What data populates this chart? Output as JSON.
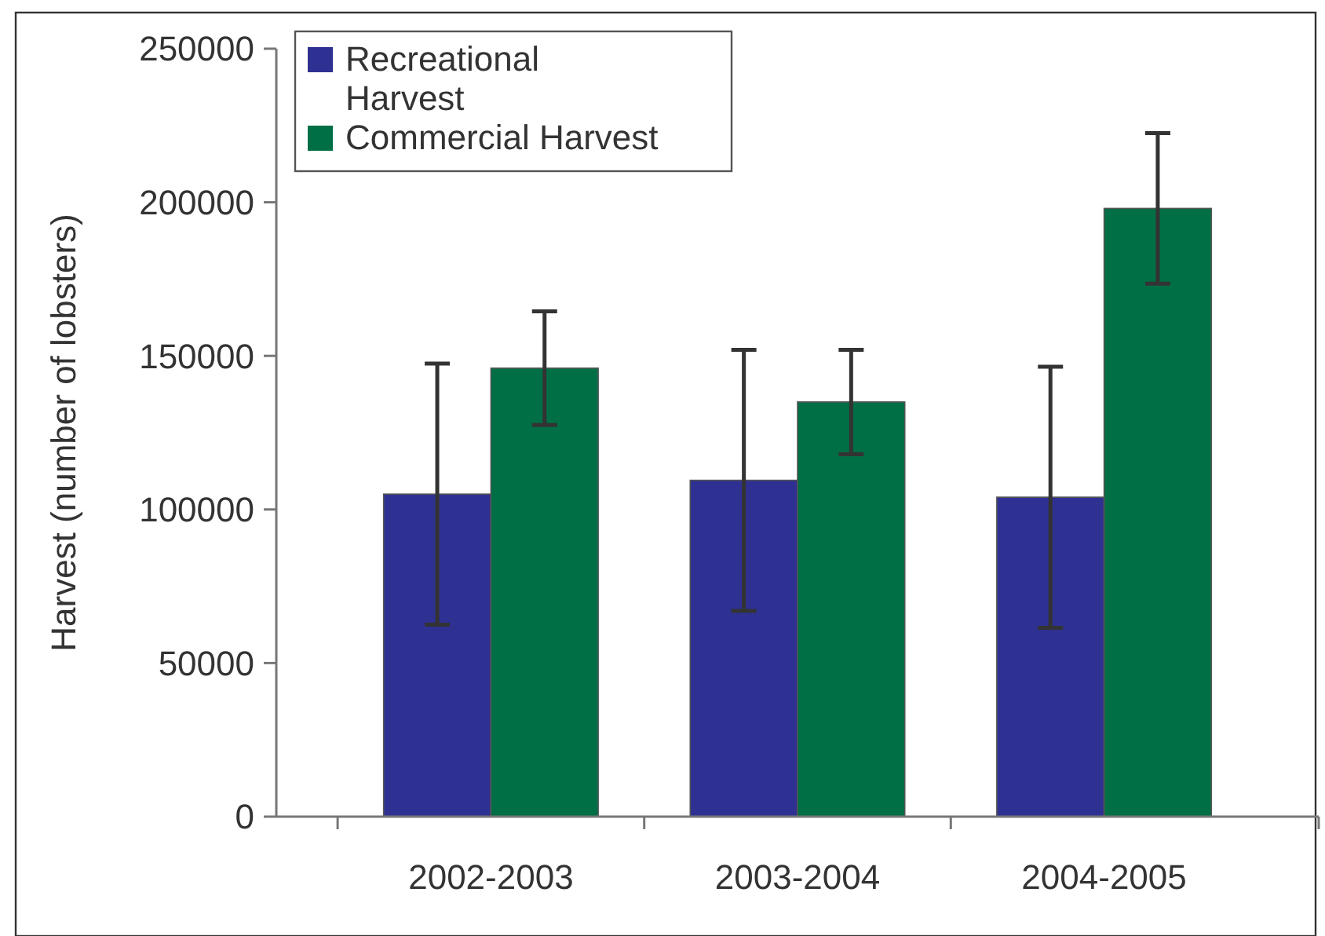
{
  "chart_data": {
    "type": "bar",
    "ylabel": "Harvest (number of lobsters)",
    "categories": [
      "2002-2003",
      "2003-2004",
      "2004-2005"
    ],
    "series": [
      {
        "name": "Recreational Harvest",
        "color": "#2e3192",
        "values": [
          105000,
          109500,
          104000
        ],
        "errors": [
          42500,
          42500,
          42500
        ]
      },
      {
        "name": "Commercial Harvest",
        "color": "#006f45",
        "values": [
          146000,
          135000,
          198000
        ],
        "errors": [
          18500,
          17000,
          24500
        ]
      }
    ],
    "ylim": [
      0,
      250000
    ],
    "yticks": [
      0,
      50000,
      100000,
      150000,
      200000,
      250000
    ],
    "grid": false,
    "legend": "top left"
  }
}
